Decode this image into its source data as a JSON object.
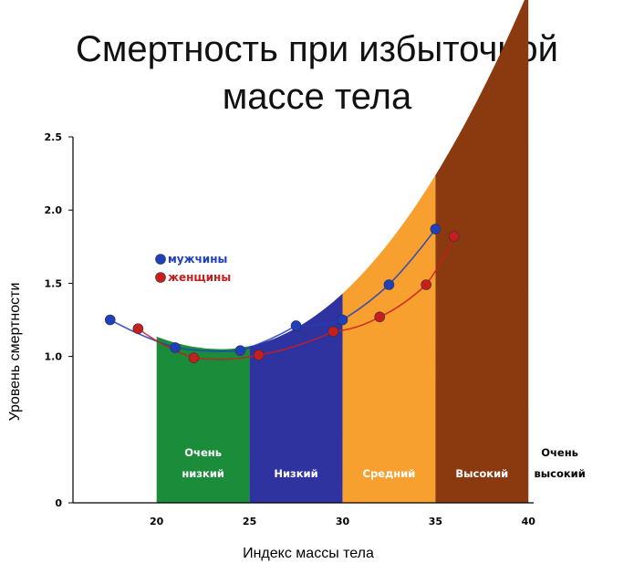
{
  "title_line1": "Смертность при избыточной",
  "title_line2": "массе тела",
  "chart_data": {
    "type": "scatter",
    "xlabel": "Индекс массы тела",
    "ylabel": "Уровень смертности",
    "xlim": [
      15.5,
      42
    ],
    "ylim": [
      0,
      2.5
    ],
    "x_ticks": [
      "20",
      "25",
      "30",
      "35",
      "40"
    ],
    "y_ticks": [
      "0",
      "1.0",
      "1.5",
      "2.0",
      "2.5"
    ],
    "legend_position": "upper-left",
    "series": [
      {
        "name": "мужчины",
        "color": "#1f3fbf",
        "points": [
          [
            17.5,
            1.25
          ],
          [
            21,
            1.06
          ],
          [
            24.5,
            1.04
          ],
          [
            27.5,
            1.21
          ],
          [
            30,
            1.25
          ],
          [
            32.5,
            1.49
          ],
          [
            35,
            1.87
          ]
        ]
      },
      {
        "name": "женщины",
        "color": "#c81e1e",
        "points": [
          [
            19,
            1.19
          ],
          [
            22,
            0.99
          ],
          [
            25.5,
            1.01
          ],
          [
            29.5,
            1.17
          ],
          [
            32,
            1.27
          ],
          [
            34.5,
            1.49
          ],
          [
            36,
            1.82
          ]
        ]
      }
    ],
    "risk_zones": [
      {
        "line1": "Очень",
        "line2": "низкий",
        "color": "#1a8c3a",
        "x_from": 20,
        "x_to": 25
      },
      {
        "line1": "",
        "line2": "Низкий",
        "color": "#2e33a0",
        "x_from": 25,
        "x_to": 30
      },
      {
        "line1": "",
        "line2": "Средний",
        "color": "#f7a030",
        "x_from": 30,
        "x_to": 35
      },
      {
        "line1": "",
        "line2": "Высокий",
        "color": "#8b3a10",
        "x_from": 35,
        "x_to": 40
      },
      {
        "line1": "Очень",
        "line2": "высокий",
        "color": "",
        "x_from": 40,
        "x_to": 42
      }
    ]
  }
}
